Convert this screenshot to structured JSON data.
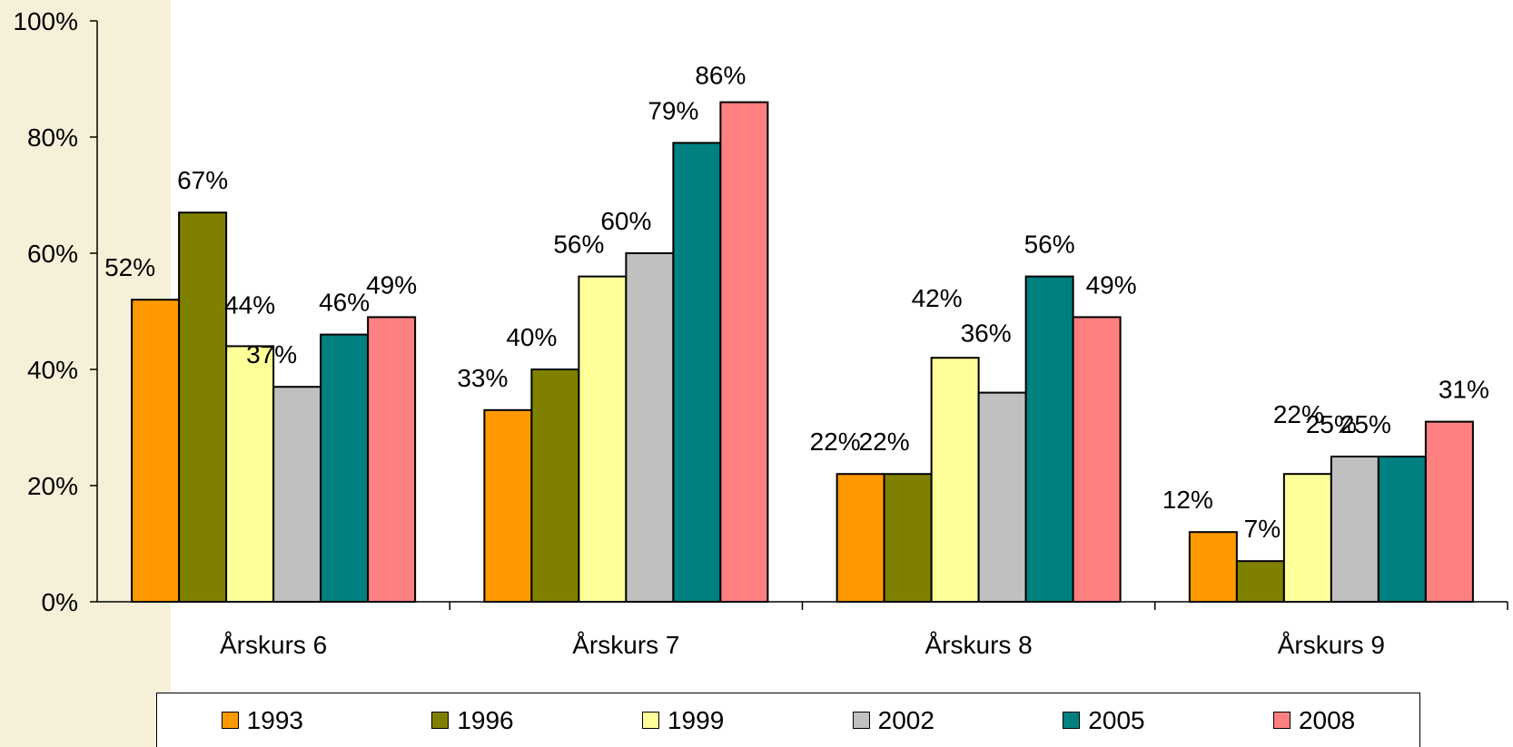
{
  "chart_data": {
    "type": "bar",
    "categories": [
      "Årskurs 6",
      "Årskurs 7",
      "Årskurs 8",
      "Årskurs 9"
    ],
    "series": [
      {
        "name": "1993",
        "color": "#FF9900",
        "values": [
          52,
          33,
          22,
          12
        ],
        "labels": [
          "52%",
          "33%",
          "22%",
          "12%"
        ]
      },
      {
        "name": "1996",
        "color": "#808000",
        "values": [
          67,
          40,
          22,
          7
        ],
        "labels": [
          "67%",
          "40%",
          "22%",
          "7%"
        ]
      },
      {
        "name": "1999",
        "color": "#FFFF99",
        "values": [
          44,
          56,
          42,
          22
        ],
        "labels": [
          "44%",
          "56%",
          "42%",
          "22%"
        ]
      },
      {
        "name": "2002",
        "color": "#C0C0C0",
        "values": [
          37,
          60,
          36,
          25
        ],
        "labels": [
          "37%",
          "60%",
          "36%",
          "25%"
        ]
      },
      {
        "name": "2005",
        "color": "#008080",
        "values": [
          46,
          79,
          56,
          25
        ],
        "labels": [
          "46%",
          "79%",
          "56%",
          "25%"
        ]
      },
      {
        "name": "2008",
        "color": "#FF8080",
        "values": [
          49,
          86,
          49,
          31
        ],
        "labels": [
          "49%",
          "86%",
          "49%",
          "31%"
        ]
      }
    ],
    "ylim": [
      0,
      100
    ],
    "yticks": [
      0,
      20,
      40,
      60,
      80,
      100
    ],
    "ytick_labels": [
      "0%",
      "20%",
      "40%",
      "60%",
      "80%",
      "100%"
    ],
    "grid": false,
    "legend_position": "bottom"
  }
}
